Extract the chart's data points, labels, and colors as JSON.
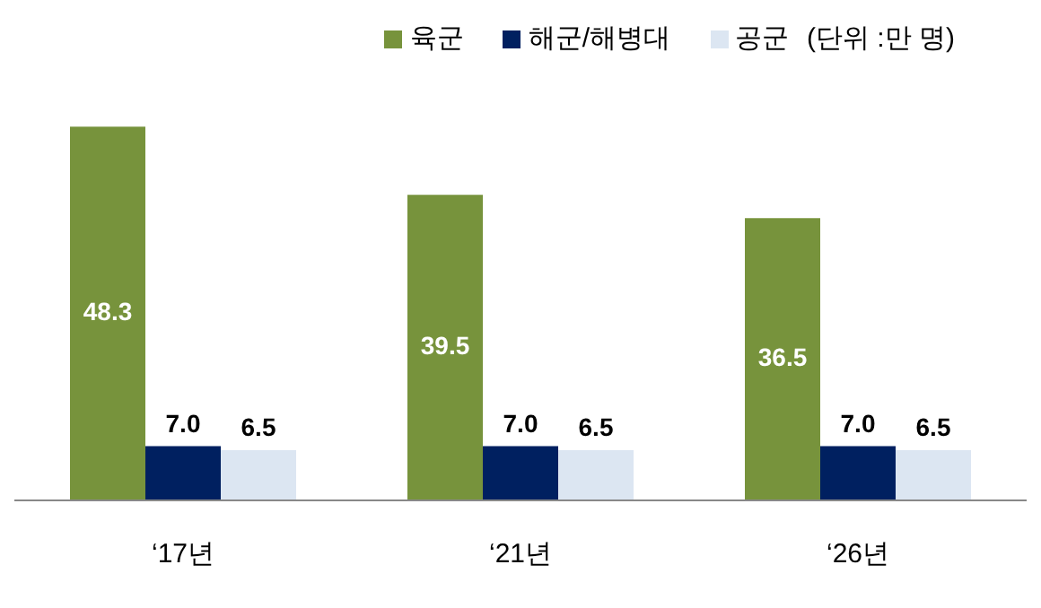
{
  "chart_data": {
    "type": "bar",
    "categories": [
      "‘17년",
      "‘21년",
      "‘26년"
    ],
    "series": [
      {
        "name": "육군",
        "color": "#77933c",
        "values": [
          48.3,
          39.5,
          36.5
        ],
        "value_labels": [
          "48.3",
          "39.5",
          "36.5"
        ]
      },
      {
        "name": "해군/해병대",
        "color": "#002060",
        "values": [
          7.0,
          7.0,
          7.0
        ],
        "value_labels": [
          "7.0",
          "7.0",
          "7.0"
        ]
      },
      {
        "name": "공군",
        "color": "#dce6f2",
        "values": [
          6.5,
          6.5,
          6.5
        ],
        "value_labels": [
          "6.5",
          "6.5",
          "6.5"
        ]
      }
    ],
    "relative": false,
    "legend": "top right",
    "grid": false,
    "annotations": [
      "(단위 :만 명)"
    ]
  }
}
